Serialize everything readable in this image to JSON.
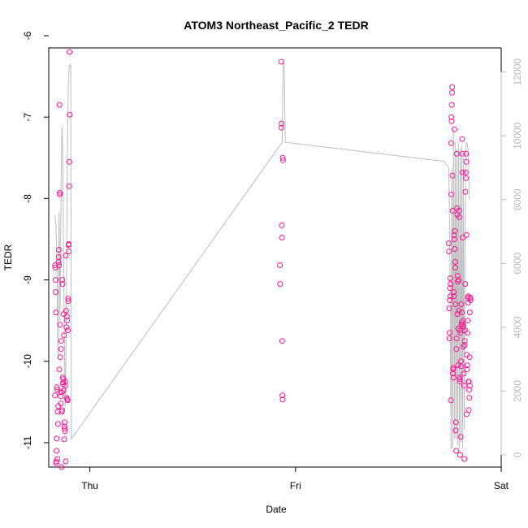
{
  "chart_data": {
    "type": "scatter",
    "title": "ATOM3 Northeast_Pacific_2 TEDR",
    "xlabel": "Date",
    "ylabel": "TEDR",
    "x_ticks": [
      "Thu",
      "Fri",
      "Sat"
    ],
    "y_ticks": [
      "-11",
      "-10",
      "-9",
      "-8",
      "-7",
      "-6"
    ],
    "y_range": [
      -11.25,
      -6.2
    ],
    "right_axis_ticks": [
      "0",
      "2000",
      "4000",
      "6000",
      "8000",
      "10000",
      "12000"
    ],
    "right_axis_range": [
      0,
      12500
    ],
    "point_color": "#ff1493",
    "line_color": "#bdbdbd",
    "series": [
      {
        "type": "scatter",
        "points": [
          [
            -0.17,
            -10.42
          ],
          [
            -0.169,
            -8.82
          ],
          [
            -0.168,
            -8.85
          ],
          [
            -0.167,
            -9.0
          ],
          [
            -0.166,
            -9.15
          ],
          [
            -0.165,
            -9.4
          ],
          [
            -0.164,
            -11.25
          ],
          [
            -0.163,
            -11.23
          ],
          [
            -0.162,
            -11.1
          ],
          [
            -0.161,
            -10.95
          ],
          [
            -0.16,
            -10.32
          ],
          [
            -0.159,
            -10.35
          ],
          [
            -0.158,
            -11.2
          ],
          [
            -0.157,
            -10.62
          ],
          [
            -0.155,
            -10.77
          ],
          [
            -0.154,
            -10.55
          ],
          [
            -0.153,
            -8.78
          ],
          [
            -0.152,
            -8.72
          ],
          [
            -0.151,
            -8.63
          ],
          [
            -0.15,
            -8.82
          ],
          [
            -0.149,
            -10.1
          ],
          [
            -0.148,
            -6.85
          ],
          [
            -0.147,
            -7.93
          ],
          [
            -0.146,
            -7.95
          ],
          [
            -0.145,
            -9.55
          ],
          [
            -0.144,
            -9.95
          ],
          [
            -0.143,
            -10.38
          ],
          [
            -0.142,
            -10.43
          ],
          [
            -0.141,
            -10.52
          ],
          [
            -0.14,
            -9.85
          ],
          [
            -0.139,
            -9.75
          ],
          [
            -0.138,
            -11.3
          ],
          [
            -0.137,
            -10.62
          ],
          [
            -0.136,
            -10.38
          ],
          [
            -0.135,
            -10.6
          ],
          [
            -0.134,
            -9.0
          ],
          [
            -0.133,
            -9.05
          ],
          [
            -0.132,
            -10.2
          ],
          [
            -0.131,
            -10.28
          ],
          [
            -0.13,
            -10.26
          ],
          [
            -0.129,
            -10.22
          ],
          [
            -0.128,
            -10.36
          ],
          [
            -0.127,
            -9.42
          ],
          [
            -0.126,
            -9.68
          ],
          [
            -0.125,
            -10.96
          ],
          [
            -0.124,
            -10.8
          ],
          [
            -0.123,
            -10.75
          ],
          [
            -0.122,
            -10.83
          ],
          [
            -0.121,
            -10.86
          ],
          [
            -0.12,
            -10.3
          ],
          [
            -0.119,
            -10.25
          ],
          [
            -0.118,
            -11.23
          ],
          [
            -0.117,
            -8.7
          ],
          [
            -0.116,
            -9.38
          ],
          [
            -0.114,
            -9.58
          ],
          [
            -0.113,
            -10.45
          ],
          [
            -0.112,
            -9.45
          ],
          [
            -0.111,
            -9.5
          ],
          [
            -0.11,
            -10.47
          ],
          [
            -0.108,
            -10.48
          ],
          [
            -0.107,
            -9.62
          ],
          [
            -0.106,
            -9.23
          ],
          [
            -0.105,
            -9.26
          ],
          [
            -0.104,
            -8.57
          ],
          [
            -0.103,
            -8.56
          ],
          [
            -0.102,
            -8.65
          ],
          [
            -0.101,
            -7.85
          ],
          [
            -0.1,
            -7.55
          ],
          [
            -0.099,
            -6.2
          ],
          [
            -0.098,
            -6.97
          ],
          [
            0.93,
            -6.32
          ],
          [
            0.931,
            -7.13
          ],
          [
            0.932,
            -7.08
          ],
          [
            0.933,
            -8.33
          ],
          [
            0.934,
            -8.48
          ],
          [
            0.935,
            -9.75
          ],
          [
            0.936,
            -10.42
          ],
          [
            0.937,
            -10.47
          ],
          [
            0.924,
            -8.82
          ],
          [
            0.925,
            -9.05
          ],
          [
            0.938,
            -7.5
          ],
          [
            0.939,
            -7.53
          ],
          [
            1.745,
            -8.55
          ],
          [
            1.746,
            -8.65
          ],
          [
            1.747,
            -9.35
          ],
          [
            1.748,
            -9.72
          ],
          [
            1.749,
            -9.65
          ],
          [
            1.75,
            -9.25
          ],
          [
            1.751,
            -9.1
          ],
          [
            1.752,
            -8.98
          ],
          [
            1.753,
            -9.2
          ],
          [
            1.754,
            -9.05
          ],
          [
            1.755,
            -10.48
          ],
          [
            1.756,
            -7.32
          ],
          [
            1.757,
            -7.95
          ],
          [
            1.758,
            -7.0
          ],
          [
            1.759,
            -7.05
          ],
          [
            1.76,
            -6.85
          ],
          [
            1.761,
            -6.7
          ],
          [
            1.762,
            -6.63
          ],
          [
            1.763,
            -7.72
          ],
          [
            1.764,
            -8.15
          ],
          [
            1.765,
            -10.15
          ],
          [
            1.766,
            -10.1
          ],
          [
            1.767,
            -10.08
          ],
          [
            1.768,
            -10.2
          ],
          [
            1.769,
            -9.15
          ],
          [
            1.77,
            -9.2
          ],
          [
            1.771,
            -8.45
          ],
          [
            1.772,
            -8.5
          ],
          [
            1.773,
            -7.15
          ],
          [
            1.774,
            -8.62
          ],
          [
            1.775,
            -8.4
          ],
          [
            1.776,
            -8.78
          ],
          [
            1.777,
            -8.85
          ],
          [
            1.778,
            -9.3
          ],
          [
            1.779,
            -10.85
          ],
          [
            1.78,
            -10.75
          ],
          [
            1.781,
            -11.1
          ],
          [
            1.782,
            -9.85
          ],
          [
            1.783,
            -9.72
          ],
          [
            1.784,
            -7.45
          ],
          [
            1.785,
            -8.12
          ],
          [
            1.786,
            -8.2
          ],
          [
            1.787,
            -9.42
          ],
          [
            1.788,
            -8.95
          ],
          [
            1.789,
            -9.02
          ],
          [
            1.79,
            -10.05
          ],
          [
            1.791,
            -9.6
          ],
          [
            1.792,
            -9.6
          ],
          [
            1.793,
            -9.0
          ],
          [
            1.794,
            -9.38
          ],
          [
            1.795,
            -8.15
          ],
          [
            1.796,
            -8.23
          ],
          [
            1.797,
            -10.2
          ],
          [
            1.798,
            -10.25
          ],
          [
            1.799,
            -10.22
          ],
          [
            1.8,
            -11.15
          ],
          [
            1.801,
            -9.62
          ],
          [
            1.802,
            -9.65
          ],
          [
            1.803,
            -10.93
          ],
          [
            1.804,
            -10.0
          ],
          [
            1.805,
            -10.06
          ],
          [
            1.806,
            -9.3
          ],
          [
            1.807,
            -9.55
          ],
          [
            1.808,
            -9.52
          ],
          [
            1.809,
            -9.4
          ],
          [
            1.81,
            -7.27
          ],
          [
            1.811,
            -7.45
          ],
          [
            1.812,
            -7.68
          ],
          [
            1.813,
            -8.48
          ],
          [
            1.814,
            -9.55
          ],
          [
            1.815,
            -9.5
          ],
          [
            1.816,
            -9.82
          ],
          [
            1.817,
            -9.58
          ],
          [
            1.818,
            -10.15
          ],
          [
            1.82,
            -10.3
          ],
          [
            1.821,
            -11.2
          ],
          [
            1.822,
            -9.8
          ],
          [
            1.823,
            -9.75
          ],
          [
            1.824,
            -9.62
          ],
          [
            1.825,
            -9.05
          ],
          [
            1.826,
            -7.92
          ],
          [
            1.827,
            -7.68
          ],
          [
            1.828,
            -7.75
          ],
          [
            1.829,
            -7.45
          ],
          [
            1.83,
            -7.55
          ],
          [
            1.831,
            -8.45
          ],
          [
            1.832,
            -10.65
          ],
          [
            1.833,
            -9.92
          ],
          [
            1.834,
            -10.1
          ],
          [
            1.835,
            -10.05
          ],
          [
            1.836,
            -9.65
          ],
          [
            1.837,
            -9.5
          ],
          [
            1.838,
            -9.22
          ],
          [
            1.839,
            -9.28
          ],
          [
            1.84,
            -9.2
          ],
          [
            1.841,
            -10.25
          ],
          [
            1.842,
            -10.6
          ],
          [
            1.843,
            -10.25
          ],
          [
            1.844,
            -10.35
          ],
          [
            1.845,
            -10.45
          ],
          [
            1.846,
            -9.95
          ],
          [
            1.847,
            -9.4
          ],
          [
            1.848,
            -10.3
          ],
          [
            1.849,
            -9.22
          ],
          [
            1.85,
            -9.22
          ],
          [
            1.851,
            -9.25
          ]
        ]
      },
      {
        "type": "line",
        "axis": "right",
        "points": [
          [
            -0.17,
            7500
          ],
          [
            -0.165,
            7200
          ],
          [
            -0.16,
            6000
          ],
          [
            -0.155,
            3000
          ],
          [
            -0.15,
            7600
          ],
          [
            -0.145,
            4200
          ],
          [
            -0.14,
            8500
          ],
          [
            -0.136,
            10300
          ],
          [
            -0.132,
            9600
          ],
          [
            -0.128,
            6200
          ],
          [
            -0.124,
            3800
          ],
          [
            -0.12,
            1500
          ],
          [
            -0.116,
            3500
          ],
          [
            -0.112,
            6800
          ],
          [
            -0.108,
            10500
          ],
          [
            -0.104,
            11700
          ],
          [
            -0.1,
            12200
          ],
          [
            -0.097,
            12200
          ],
          [
            -0.093,
            12250
          ],
          [
            -0.09,
            500
          ],
          [
            0.935,
            9800
          ],
          [
            0.94,
            12300
          ],
          [
            0.945,
            12300
          ],
          [
            0.95,
            9800
          ],
          [
            1.72,
            9200
          ],
          [
            1.745,
            9000
          ],
          [
            1.748,
            7800
          ],
          [
            1.752,
            5000
          ],
          [
            1.756,
            200
          ],
          [
            1.76,
            9000
          ],
          [
            1.764,
            200
          ],
          [
            1.768,
            10200
          ],
          [
            1.772,
            500
          ],
          [
            1.776,
            9800
          ],
          [
            1.78,
            500
          ],
          [
            1.784,
            9600
          ],
          [
            1.788,
            300
          ],
          [
            1.792,
            9800
          ],
          [
            1.796,
            200
          ],
          [
            1.8,
            9600
          ],
          [
            1.804,
            400
          ],
          [
            1.808,
            9700
          ],
          [
            1.812,
            200
          ],
          [
            1.816,
            9300
          ],
          [
            1.82,
            800
          ],
          [
            1.824,
            6000
          ],
          [
            1.828,
            9700
          ],
          [
            1.832,
            9800
          ],
          [
            1.836,
            9700
          ],
          [
            1.84,
            9500
          ],
          [
            1.845,
            8000
          ]
        ]
      }
    ]
  }
}
